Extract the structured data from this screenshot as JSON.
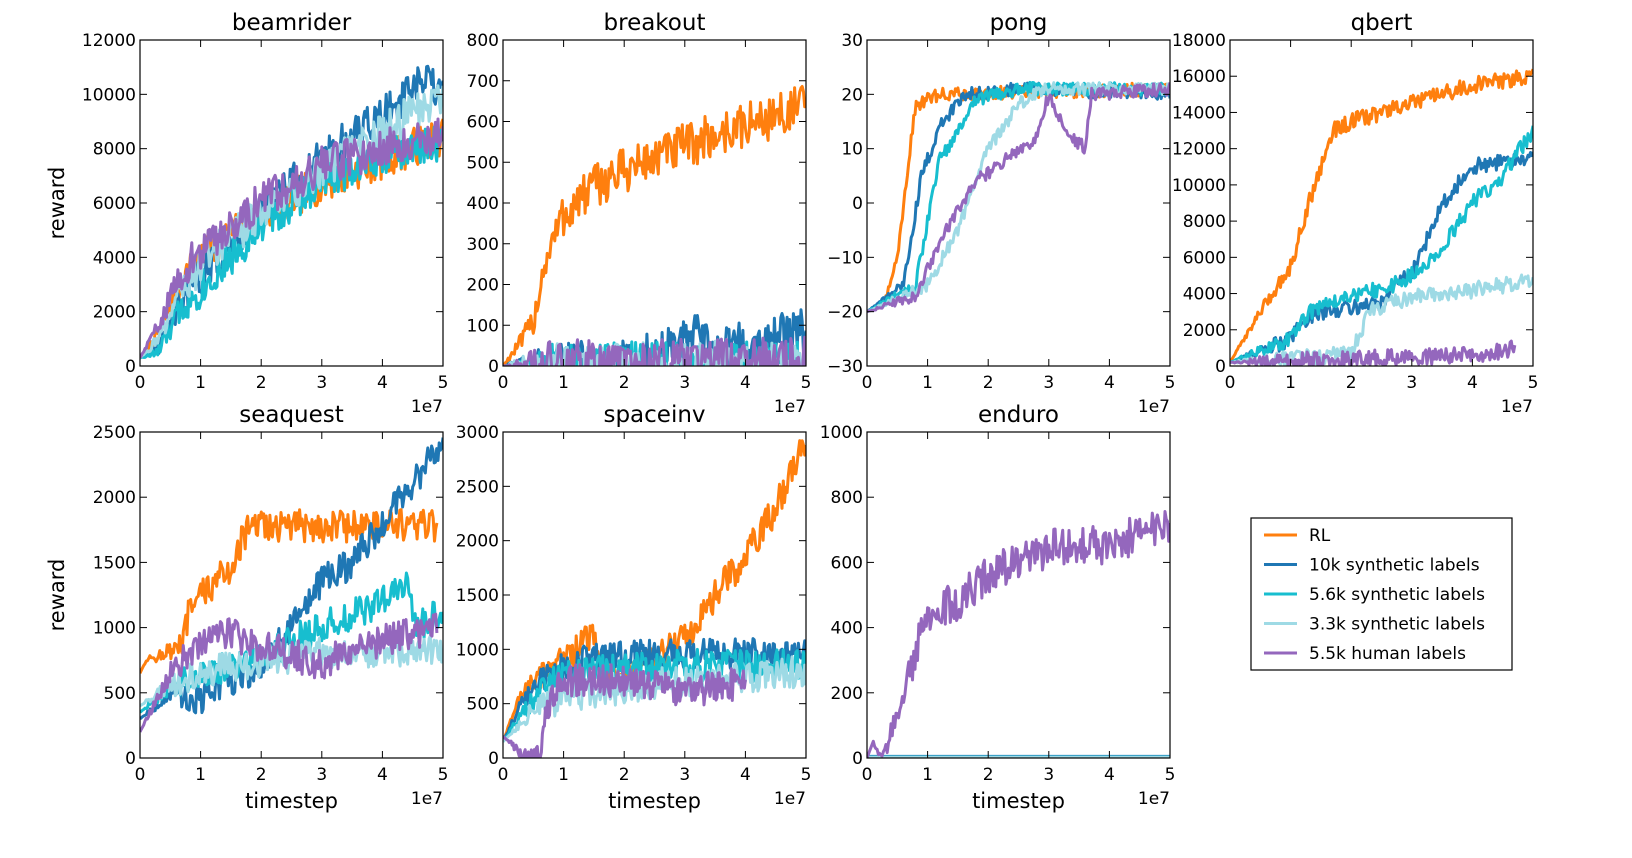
{
  "figure": {
    "legend": {
      "placement": "bottom-right empty cell",
      "entries": [
        "RL",
        "10k synthetic labels",
        "5.6k synthetic labels",
        "3.3k synthetic labels",
        "5.5k human labels"
      ],
      "colors": [
        "#ff7f0e",
        "#1f77b4",
        "#17becf",
        "#9edae5",
        "#9467bd"
      ]
    },
    "x_tick_labels": [
      "0",
      "1",
      "2",
      "3",
      "4",
      "5"
    ],
    "x_offset_label": "1e7",
    "xlabel": "timestep",
    "ylabel": "reward"
  },
  "chart_data": [
    {
      "type": "line",
      "title": "beamrider",
      "xlabel": "",
      "ylabel": "reward",
      "xlim": [
        0,
        5
      ],
      "ylim": [
        0,
        12000
      ],
      "grid": false,
      "noise": 0.06,
      "y_ticks": [
        "0",
        "2000",
        "4000",
        "6000",
        "8000",
        "10000",
        "12000"
      ],
      "series": [
        {
          "name": "RL",
          "x": [
            0,
            0.3,
            0.7,
            1.2,
            2.0,
            3.0,
            4.0,
            5.0
          ],
          "y": [
            300,
            1200,
            3200,
            4300,
            5600,
            6700,
            7600,
            8500
          ]
        },
        {
          "name": "10k synthetic labels",
          "x": [
            0,
            0.3,
            0.7,
            1.2,
            2.0,
            3.0,
            4.0,
            4.7,
            5.0
          ],
          "y": [
            300,
            600,
            2500,
            3800,
            5700,
            7700,
            9200,
            10500,
            10000
          ]
        },
        {
          "name": "5.6k synthetic labels",
          "x": [
            0,
            0.3,
            0.7,
            1.2,
            2.0,
            3.0,
            4.0,
            5.0
          ],
          "y": [
            300,
            500,
            2200,
            3300,
            5200,
            6800,
            7800,
            8200
          ]
        },
        {
          "name": "3.3k synthetic labels",
          "x": [
            0,
            0.3,
            0.7,
            1.2,
            2.0,
            3.0,
            4.0,
            5.0
          ],
          "y": [
            300,
            1000,
            3000,
            4200,
            5600,
            7200,
            8600,
            10000
          ]
        },
        {
          "name": "5.5k human labels",
          "x": [
            0,
            0.3,
            0.7,
            1.2,
            2.0,
            3.0,
            4.0,
            5.0
          ],
          "y": [
            300,
            1500,
            3500,
            4600,
            6100,
            7400,
            8000,
            8600
          ]
        }
      ]
    },
    {
      "type": "line",
      "title": "breakout",
      "xlabel": "",
      "ylabel": "",
      "xlim": [
        0,
        5
      ],
      "ylim": [
        0,
        800
      ],
      "grid": false,
      "noise": 0.07,
      "y_ticks": [
        "0",
        "100",
        "200",
        "300",
        "400",
        "500",
        "600",
        "700",
        "800"
      ],
      "series": [
        {
          "name": "RL",
          "x": [
            0,
            0.3,
            0.5,
            0.7,
            1.0,
            1.5,
            2.0,
            3.0,
            4.0,
            5.0
          ],
          "y": [
            0,
            60,
            110,
            260,
            370,
            440,
            480,
            540,
            590,
            640
          ]
        },
        {
          "name": "10k synthetic labels",
          "x": [
            0,
            1.0,
            2.0,
            2.8,
            3.2,
            3.5,
            4.0,
            5.0
          ],
          "y": [
            0,
            5,
            15,
            40,
            75,
            40,
            55,
            85
          ]
        },
        {
          "name": "5.6k synthetic labels",
          "x": [
            0,
            5.0
          ],
          "y": [
            0,
            8
          ]
        },
        {
          "name": "3.3k synthetic labels",
          "x": [
            0,
            5.0
          ],
          "y": [
            0,
            10
          ]
        },
        {
          "name": "5.5k human labels",
          "x": [
            0,
            1.0,
            5.0
          ],
          "y": [
            0,
            10,
            15
          ]
        }
      ]
    },
    {
      "type": "line",
      "title": "pong",
      "xlabel": "",
      "ylabel": "",
      "xlim": [
        0,
        5
      ],
      "ylim": [
        -30,
        30
      ],
      "grid": false,
      "noise": 0.02,
      "y_ticks": [
        "−30",
        "−20",
        "−10",
        "0",
        "10",
        "20",
        "30"
      ],
      "series": [
        {
          "name": "RL",
          "x": [
            0,
            0.3,
            0.5,
            0.8,
            1.2,
            5.0
          ],
          "y": [
            -20,
            -18,
            -10,
            18,
            20,
            21
          ]
        },
        {
          "name": "10k synthetic labels",
          "x": [
            0,
            0.6,
            0.9,
            1.2,
            1.6,
            2.5,
            5.0
          ],
          "y": [
            -20,
            -15,
            5,
            14,
            20,
            21,
            20
          ]
        },
        {
          "name": "5.6k synthetic labels",
          "x": [
            0,
            0.8,
            1.2,
            1.5,
            1.8,
            2.5,
            5.0
          ],
          "y": [
            -20,
            -15,
            8,
            13,
            19,
            21,
            21
          ]
        },
        {
          "name": "3.3k synthetic labels",
          "x": [
            0,
            1.0,
            1.5,
            2.0,
            2.5,
            2.7,
            3.0,
            5.0
          ],
          "y": [
            -20,
            -15,
            -5,
            10,
            18,
            20,
            21,
            21
          ]
        },
        {
          "name": "5.5k human labels",
          "x": [
            0,
            0.8,
            1.3,
            1.8,
            2.3,
            2.8,
            3.0,
            3.3,
            3.6,
            3.7,
            5.0
          ],
          "y": [
            -20,
            -17,
            -5,
            4,
            8,
            12,
            20,
            13,
            10,
            20,
            21
          ]
        }
      ]
    },
    {
      "type": "line",
      "title": "qbert",
      "xlabel": "",
      "ylabel": "",
      "xlim": [
        0,
        5
      ],
      "ylim": [
        0,
        18000
      ],
      "grid": false,
      "noise": 0.025,
      "y_ticks": [
        "0",
        "2000",
        "4000",
        "6000",
        "8000",
        "10000",
        "12000",
        "14000",
        "16000",
        "18000"
      ],
      "series": [
        {
          "name": "RL",
          "x": [
            0,
            0.5,
            1.0,
            1.3,
            1.7,
            2.0,
            3.0,
            4.0,
            5.0
          ],
          "y": [
            200,
            3000,
            5500,
            9000,
            13000,
            13500,
            14500,
            15500,
            16000
          ]
        },
        {
          "name": "10k synthetic labels",
          "x": [
            0,
            1.0,
            1.3,
            2.0,
            2.5,
            2.7,
            3.0,
            3.5,
            4.0,
            5.0
          ],
          "y": [
            200,
            1500,
            2800,
            3300,
            3400,
            4500,
            5000,
            9000,
            11000,
            11500
          ]
        },
        {
          "name": "5.6k synthetic labels",
          "x": [
            0,
            1.0,
            1.3,
            2.0,
            2.5,
            3.0,
            3.5,
            4.0,
            4.5,
            5.0
          ],
          "y": [
            200,
            1500,
            3000,
            4000,
            4200,
            5000,
            6500,
            9000,
            10500,
            13000
          ]
        },
        {
          "name": "3.3k synthetic labels",
          "x": [
            0,
            1.5,
            2.0,
            2.3,
            3.0,
            4.0,
            5.0
          ],
          "y": [
            200,
            500,
            800,
            3000,
            3800,
            4200,
            4700
          ]
        },
        {
          "name": "5.5k human labels",
          "x": [
            0,
            1.0,
            2.0,
            3.0,
            4.0,
            4.5,
            4.7
          ],
          "y": [
            200,
            300,
            400,
            500,
            600,
            800,
            1000
          ]
        }
      ]
    },
    {
      "type": "line",
      "title": "seaquest",
      "xlabel": "timestep",
      "ylabel": "reward",
      "xlim": [
        0,
        5
      ],
      "ylim": [
        0,
        2500
      ],
      "grid": false,
      "noise": 0.05,
      "y_ticks": [
        "0",
        "500",
        "1000",
        "1500",
        "2000",
        "2500"
      ],
      "series": [
        {
          "name": "RL",
          "x": [
            0,
            0.1,
            0.7,
            0.8,
            1.1,
            1.5,
            1.6,
            1.8,
            2.0,
            3.0,
            4.0,
            4.9
          ],
          "y": [
            650,
            750,
            850,
            1100,
            1300,
            1450,
            1600,
            1750,
            1780,
            1780,
            1780,
            1780
          ]
        },
        {
          "name": "10k synthetic labels",
          "x": [
            0,
            0.5,
            1.0,
            1.5,
            2.0,
            2.5,
            3.0,
            3.5,
            4.0,
            4.5,
            4.7,
            5.0
          ],
          "y": [
            300,
            500,
            450,
            600,
            700,
            1000,
            1350,
            1500,
            1800,
            2100,
            2250,
            2450
          ]
        },
        {
          "name": "5.6k synthetic labels",
          "x": [
            0,
            0.5,
            1.0,
            1.5,
            2.0,
            3.0,
            3.5,
            4.0,
            4.4,
            4.6,
            5.0
          ],
          "y": [
            350,
            550,
            650,
            700,
            800,
            1000,
            1100,
            1200,
            1320,
            1000,
            1130
          ]
        },
        {
          "name": "3.3k synthetic labels",
          "x": [
            0,
            0.5,
            1.0,
            2.0,
            3.0,
            4.0,
            5.0
          ],
          "y": [
            400,
            550,
            650,
            750,
            800,
            820,
            850
          ]
        },
        {
          "name": "5.5k human labels",
          "x": [
            0,
            0.5,
            1.0,
            1.5,
            2.0,
            2.5,
            3.0,
            3.5,
            4.0,
            4.5,
            4.9
          ],
          "y": [
            200,
            650,
            900,
            950,
            850,
            800,
            700,
            850,
            900,
            950,
            1000
          ]
        }
      ]
    },
    {
      "type": "line",
      "title": "spaceinv",
      "xlabel": "timestep",
      "ylabel": "",
      "xlim": [
        0,
        5
      ],
      "ylim": [
        0,
        3000
      ],
      "grid": false,
      "noise": 0.05,
      "y_ticks": [
        "0",
        "500",
        "1000",
        "1500",
        "2000",
        "2500",
        "3000"
      ],
      "series": [
        {
          "name": "RL",
          "x": [
            0,
            0.3,
            0.7,
            1.0,
            1.5,
            1.6,
            2.0,
            2.5,
            3.0,
            3.5,
            4.0,
            4.5,
            5.0
          ],
          "y": [
            150,
            600,
            800,
            900,
            1150,
            800,
            750,
            900,
            1100,
            1500,
            1850,
            2300,
            2950
          ]
        },
        {
          "name": "10k synthetic labels",
          "x": [
            0,
            0.3,
            0.7,
            1.0,
            1.5,
            2.0,
            3.0,
            4.0,
            5.0
          ],
          "y": [
            150,
            500,
            750,
            850,
            900,
            930,
            950,
            950,
            950
          ]
        },
        {
          "name": "5.6k synthetic labels",
          "x": [
            0,
            0.3,
            0.7,
            1.0,
            1.5,
            2.0,
            3.0,
            4.0,
            5.0
          ],
          "y": [
            150,
            400,
            650,
            750,
            800,
            830,
            850,
            850,
            860
          ]
        },
        {
          "name": "3.3k synthetic labels",
          "x": [
            0,
            0.5,
            1.0,
            2.0,
            3.0,
            4.0,
            5.0
          ],
          "y": [
            150,
            450,
            550,
            650,
            700,
            750,
            800
          ]
        },
        {
          "name": "5.5k human labels",
          "x": [
            0,
            0.3,
            0.5,
            0.6,
            0.7,
            0.8,
            1.0,
            1.5,
            2.0,
            2.5,
            3.0,
            3.5,
            4.0
          ],
          "y": [
            200,
            50,
            0,
            0,
            400,
            600,
            700,
            720,
            700,
            650,
            600,
            650,
            700
          ]
        }
      ]
    },
    {
      "type": "line",
      "title": "enduro",
      "xlabel": "timestep",
      "ylabel": "",
      "xlim": [
        0,
        5
      ],
      "ylim": [
        0,
        1000
      ],
      "grid": false,
      "noise": 0.06,
      "y_ticks": [
        "0",
        "200",
        "400",
        "600",
        "800",
        "1000"
      ],
      "series": [
        {
          "name": "RL",
          "x": [
            0,
            5.0
          ],
          "y": [
            0,
            0
          ]
        },
        {
          "name": "10k synthetic labels",
          "x": [
            0,
            5.0
          ],
          "y": [
            5,
            5
          ]
        },
        {
          "name": "5.6k synthetic labels",
          "x": [
            0,
            5.0
          ],
          "y": [
            3,
            3
          ]
        },
        {
          "name": "3.3k synthetic labels",
          "x": [
            0,
            5.0
          ],
          "y": [
            2,
            2
          ]
        },
        {
          "name": "5.5k human labels",
          "x": [
            0,
            0.1,
            0.2,
            0.3,
            0.5,
            0.7,
            0.9,
            1.0,
            1.5,
            2.0,
            2.5,
            3.0,
            3.5,
            4.0,
            4.5,
            5.0
          ],
          "y": [
            0,
            50,
            0,
            20,
            150,
            250,
            400,
            450,
            480,
            560,
            600,
            640,
            660,
            650,
            690,
            700
          ]
        }
      ]
    }
  ]
}
